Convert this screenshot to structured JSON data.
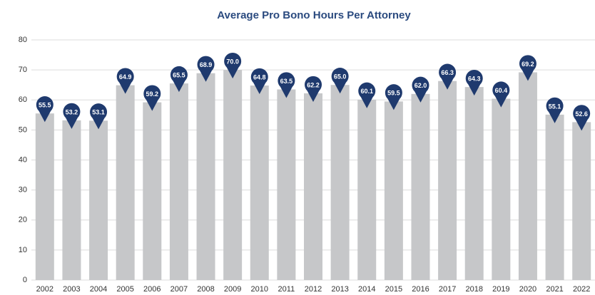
{
  "chart_data": {
    "type": "bar",
    "title": "Average Pro Bono Hours Per Attorney",
    "categories": [
      "2002",
      "2003",
      "2004",
      "2005",
      "2006",
      "2007",
      "2008",
      "2009",
      "2010",
      "2011",
      "2012",
      "2013",
      "2014",
      "2015",
      "2016",
      "2017",
      "2018",
      "2019",
      "2020",
      "2021",
      "2022"
    ],
    "values": [
      55.5,
      53.2,
      53.1,
      64.9,
      59.2,
      65.5,
      68.9,
      70.0,
      64.8,
      63.5,
      62.2,
      65.0,
      60.1,
      59.5,
      62.0,
      66.3,
      64.3,
      60.4,
      69.2,
      55.1,
      52.6
    ],
    "value_labels": [
      "55.5",
      "53.2",
      "53.1",
      "64.9",
      "59.2",
      "65.5",
      "68.9",
      "70.0",
      "64.8",
      "63.5",
      "62.2",
      "65.0",
      "60.1",
      "59.5",
      "62.0",
      "66.3",
      "64.3",
      "60.4",
      "69.2",
      "55.1",
      "52.6"
    ],
    "color": "#c6c7c9",
    "label_color": "#1f3a6e",
    "ylim": [
      0,
      80
    ],
    "yticks": [
      0,
      10,
      20,
      30,
      40,
      50,
      60,
      70,
      80
    ],
    "grid": true
  }
}
